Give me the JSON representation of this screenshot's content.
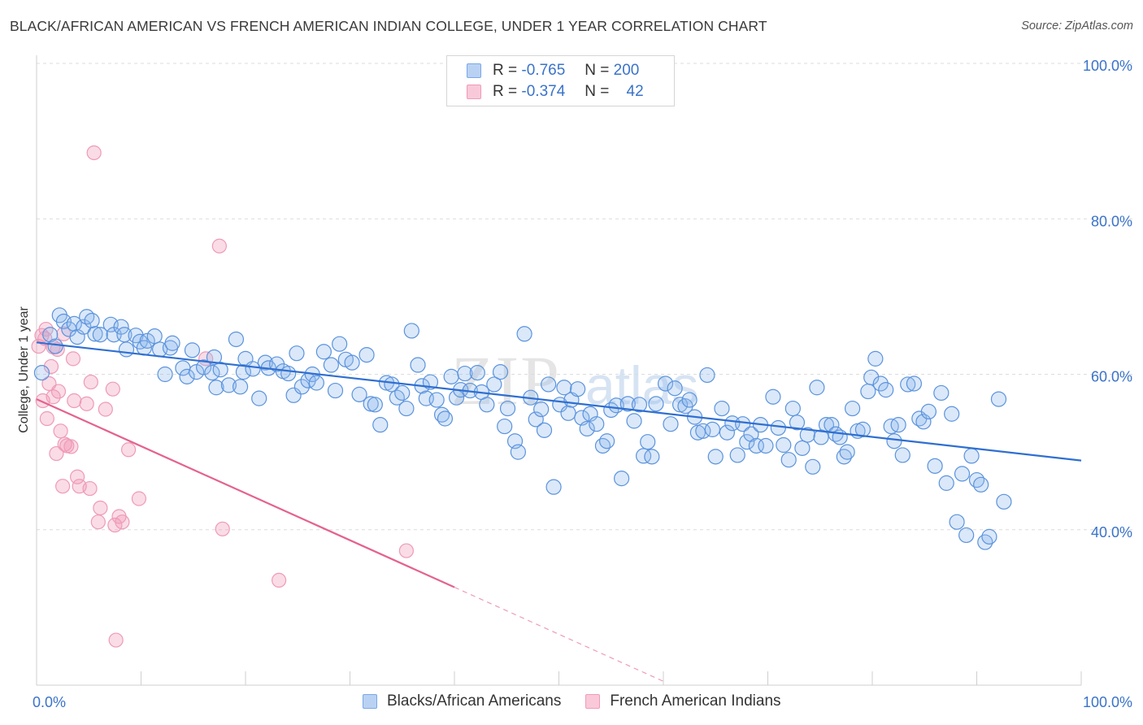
{
  "title": "BLACK/AFRICAN AMERICAN VS FRENCH AMERICAN INDIAN COLLEGE, UNDER 1 YEAR CORRELATION CHART",
  "source": "Source: ZipAtlas.com",
  "watermark": "ZIPatlas",
  "legend": {
    "rows": [
      {
        "r_label": "R =",
        "r_value": "-0.765",
        "n_label": "N =",
        "n_value": "200",
        "color": "#7aa8e6"
      },
      {
        "r_label": "R =",
        "r_value": "-0.374",
        "n_label": "N =",
        "n_value": "42",
        "color": "#f19ab8"
      }
    ]
  },
  "bottom_legend": [
    {
      "label": "Blacks/African Americans",
      "color": "#7aa8e6"
    },
    {
      "label": "French American Indians",
      "color": "#f19ab8"
    }
  ],
  "chart_data": {
    "type": "scatter",
    "title": "BLACK/AFRICAN AMERICAN VS FRENCH AMERICAN INDIAN COLLEGE, UNDER 1 YEAR CORRELATION CHART",
    "xlabel": "",
    "ylabel": "College, Under 1 year",
    "xlim": [
      0,
      100
    ],
    "ylim": [
      20,
      100
    ],
    "x_tick_labels": [
      "0.0%",
      "100.0%"
    ],
    "y_tick_labels": [
      "40.0%",
      "60.0%",
      "80.0%",
      "100.0%"
    ],
    "y_ticks": [
      40,
      60,
      80,
      100
    ],
    "grid": true,
    "legend_position": "top-center",
    "series": [
      {
        "name": "Blacks/African Americans",
        "color": "#4a86d8",
        "trend": {
          "x": [
            0,
            100
          ],
          "y": [
            64.1,
            48.9
          ]
        },
        "points": [
          [
            0.5,
            60.2
          ],
          [
            1.3,
            65.1
          ],
          [
            1.8,
            63.6
          ],
          [
            2.2,
            67.6
          ],
          [
            2.6,
            66.8
          ],
          [
            3.1,
            65.8
          ],
          [
            3.6,
            66.5
          ],
          [
            3.9,
            64.8
          ],
          [
            4.5,
            66.1
          ],
          [
            4.8,
            67.4
          ],
          [
            5.3,
            66.9
          ],
          [
            5.6,
            65.2
          ],
          [
            6.1,
            65.1
          ],
          [
            7.1,
            66.4
          ],
          [
            7.4,
            65.1
          ],
          [
            8.1,
            66.1
          ],
          [
            8.4,
            65.1
          ],
          [
            8.6,
            63.2
          ],
          [
            9.5,
            65.0
          ],
          [
            9.9,
            64.2
          ],
          [
            10.3,
            63.4
          ],
          [
            10.6,
            64.3
          ],
          [
            11.3,
            64.9
          ],
          [
            11.8,
            63.2
          ],
          [
            12.3,
            60.0
          ],
          [
            12.8,
            63.4
          ],
          [
            13.0,
            64.0
          ],
          [
            14.0,
            60.8
          ],
          [
            14.4,
            59.7
          ],
          [
            14.9,
            63.1
          ],
          [
            15.3,
            60.3
          ],
          [
            16.0,
            60.9
          ],
          [
            16.8,
            60.2
          ],
          [
            17.0,
            62.2
          ],
          [
            17.2,
            58.3
          ],
          [
            17.6,
            60.6
          ],
          [
            18.4,
            58.6
          ],
          [
            19.1,
            64.5
          ],
          [
            19.5,
            58.4
          ],
          [
            19.8,
            60.3
          ],
          [
            20.0,
            62.0
          ],
          [
            20.7,
            60.7
          ],
          [
            21.3,
            56.9
          ],
          [
            21.9,
            61.5
          ],
          [
            22.2,
            60.8
          ],
          [
            23.0,
            61.3
          ],
          [
            23.6,
            60.4
          ],
          [
            24.1,
            60.1
          ],
          [
            24.6,
            57.3
          ],
          [
            24.9,
            62.7
          ],
          [
            25.4,
            58.4
          ],
          [
            26.0,
            59.2
          ],
          [
            26.4,
            60.0
          ],
          [
            26.8,
            58.9
          ],
          [
            27.5,
            62.9
          ],
          [
            28.2,
            61.2
          ],
          [
            28.6,
            57.9
          ],
          [
            29.0,
            63.9
          ],
          [
            29.6,
            61.9
          ],
          [
            30.2,
            61.5
          ],
          [
            30.9,
            57.4
          ],
          [
            31.6,
            62.5
          ],
          [
            32.0,
            56.2
          ],
          [
            32.4,
            56.1
          ],
          [
            32.9,
            53.5
          ],
          [
            33.5,
            58.9
          ],
          [
            34.0,
            58.7
          ],
          [
            34.5,
            57.0
          ],
          [
            35.0,
            57.6
          ],
          [
            35.4,
            55.6
          ],
          [
            35.9,
            65.6
          ],
          [
            36.5,
            61.2
          ],
          [
            36.9,
            58.5
          ],
          [
            37.3,
            56.9
          ],
          [
            37.7,
            59.0
          ],
          [
            38.3,
            56.7
          ],
          [
            38.8,
            54.8
          ],
          [
            39.1,
            54.3
          ],
          [
            39.7,
            59.7
          ],
          [
            40.2,
            57.0
          ],
          [
            40.6,
            58.0
          ],
          [
            41.0,
            60.1
          ],
          [
            41.5,
            57.9
          ],
          [
            42.2,
            60.2
          ],
          [
            42.6,
            57.7
          ],
          [
            43.1,
            56.1
          ],
          [
            43.8,
            58.7
          ],
          [
            44.4,
            60.3
          ],
          [
            44.8,
            53.3
          ],
          [
            45.1,
            55.6
          ],
          [
            45.8,
            51.4
          ],
          [
            46.1,
            50.0
          ],
          [
            46.7,
            65.2
          ],
          [
            47.3,
            57.0
          ],
          [
            47.8,
            54.2
          ],
          [
            48.3,
            55.5
          ],
          [
            48.6,
            52.8
          ],
          [
            49.0,
            58.7
          ],
          [
            49.5,
            45.5
          ],
          [
            50.1,
            56.1
          ],
          [
            50.5,
            58.3
          ],
          [
            50.9,
            55.0
          ],
          [
            51.2,
            56.7
          ],
          [
            51.8,
            58.1
          ],
          [
            52.2,
            54.4
          ],
          [
            52.7,
            53.0
          ],
          [
            53.0,
            54.9
          ],
          [
            53.6,
            53.6
          ],
          [
            54.2,
            50.8
          ],
          [
            54.6,
            51.4
          ],
          [
            55.0,
            55.4
          ],
          [
            55.5,
            56.0
          ],
          [
            56.0,
            46.6
          ],
          [
            56.6,
            56.2
          ],
          [
            57.2,
            54.0
          ],
          [
            57.7,
            56.1
          ],
          [
            58.1,
            49.5
          ],
          [
            58.5,
            51.3
          ],
          [
            58.9,
            49.4
          ],
          [
            59.3,
            56.2
          ],
          [
            60.2,
            58.8
          ],
          [
            60.7,
            53.6
          ],
          [
            61.1,
            58.2
          ],
          [
            61.6,
            56.1
          ],
          [
            62.1,
            55.9
          ],
          [
            62.5,
            56.7
          ],
          [
            63.0,
            54.5
          ],
          [
            63.3,
            52.5
          ],
          [
            63.8,
            52.7
          ],
          [
            64.2,
            59.9
          ],
          [
            64.7,
            52.9
          ],
          [
            65.0,
            49.4
          ],
          [
            65.6,
            55.6
          ],
          [
            66.1,
            52.5
          ],
          [
            66.6,
            53.7
          ],
          [
            67.1,
            49.6
          ],
          [
            67.6,
            53.6
          ],
          [
            68.0,
            51.3
          ],
          [
            68.4,
            52.3
          ],
          [
            68.9,
            50.8
          ],
          [
            69.3,
            53.5
          ],
          [
            69.8,
            50.8
          ],
          [
            70.5,
            57.1
          ],
          [
            71.0,
            53.1
          ],
          [
            71.5,
            50.9
          ],
          [
            72.0,
            49.0
          ],
          [
            72.4,
            55.6
          ],
          [
            72.8,
            53.8
          ],
          [
            73.3,
            50.5
          ],
          [
            73.8,
            52.2
          ],
          [
            74.3,
            48.1
          ],
          [
            74.7,
            58.3
          ],
          [
            75.1,
            51.9
          ],
          [
            75.6,
            53.5
          ],
          [
            76.1,
            53.5
          ],
          [
            76.5,
            52.3
          ],
          [
            76.9,
            51.9
          ],
          [
            77.3,
            49.4
          ],
          [
            77.6,
            50.0
          ],
          [
            78.1,
            55.6
          ],
          [
            78.6,
            52.7
          ],
          [
            79.1,
            52.9
          ],
          [
            79.6,
            57.8
          ],
          [
            79.9,
            59.6
          ],
          [
            80.3,
            62.0
          ],
          [
            80.8,
            58.8
          ],
          [
            81.3,
            58.0
          ],
          [
            81.8,
            53.3
          ],
          [
            82.1,
            51.4
          ],
          [
            82.5,
            53.5
          ],
          [
            82.9,
            49.6
          ],
          [
            83.4,
            58.7
          ],
          [
            84.0,
            58.8
          ],
          [
            84.5,
            54.3
          ],
          [
            84.9,
            53.9
          ],
          [
            85.4,
            55.2
          ],
          [
            86.0,
            48.2
          ],
          [
            86.6,
            57.6
          ],
          [
            87.1,
            46.0
          ],
          [
            87.6,
            54.9
          ],
          [
            88.1,
            41.0
          ],
          [
            88.6,
            47.2
          ],
          [
            89.0,
            39.3
          ],
          [
            89.5,
            49.5
          ],
          [
            90.0,
            46.4
          ],
          [
            90.4,
            45.8
          ],
          [
            90.8,
            38.4
          ],
          [
            91.2,
            39.1
          ],
          [
            92.1,
            56.8
          ],
          [
            92.6,
            43.6
          ]
        ]
      },
      {
        "name": "French American Indians",
        "color": "#ea6b9a",
        "trend": {
          "x": [
            0,
            40
          ],
          "y": [
            56.8,
            32.6
          ]
        },
        "trend_dashed": {
          "x": [
            40,
            60
          ],
          "y": [
            32.6,
            20.5
          ]
        },
        "points": [
          [
            0.2,
            63.6
          ],
          [
            0.5,
            65.0
          ],
          [
            0.6,
            56.6
          ],
          [
            0.8,
            64.6
          ],
          [
            1.0,
            54.3
          ],
          [
            1.2,
            58.8
          ],
          [
            1.4,
            61.0
          ],
          [
            1.6,
            57.1
          ],
          [
            1.9,
            49.8
          ],
          [
            2.0,
            63.2
          ],
          [
            2.1,
            57.8
          ],
          [
            2.3,
            52.7
          ],
          [
            2.5,
            45.6
          ],
          [
            2.7,
            51.0
          ],
          [
            2.9,
            50.8
          ],
          [
            3.3,
            50.7
          ],
          [
            3.5,
            62.0
          ],
          [
            3.6,
            56.6
          ],
          [
            3.9,
            46.8
          ],
          [
            4.1,
            45.6
          ],
          [
            4.8,
            56.2
          ],
          [
            5.1,
            45.3
          ],
          [
            5.2,
            59.0
          ],
          [
            5.5,
            88.5
          ],
          [
            5.9,
            41.0
          ],
          [
            6.1,
            42.8
          ],
          [
            6.6,
            55.5
          ],
          [
            7.3,
            58.1
          ],
          [
            7.5,
            40.6
          ],
          [
            7.6,
            25.8
          ],
          [
            7.9,
            41.7
          ],
          [
            8.2,
            41.0
          ],
          [
            8.8,
            50.3
          ],
          [
            9.8,
            44.0
          ],
          [
            16.2,
            62.0
          ],
          [
            17.5,
            76.5
          ],
          [
            17.8,
            40.1
          ],
          [
            23.2,
            33.5
          ],
          [
            35.4,
            37.3
          ],
          [
            1.6,
            63.5
          ],
          [
            2.6,
            65.2
          ],
          [
            0.9,
            65.8
          ]
        ]
      }
    ]
  }
}
